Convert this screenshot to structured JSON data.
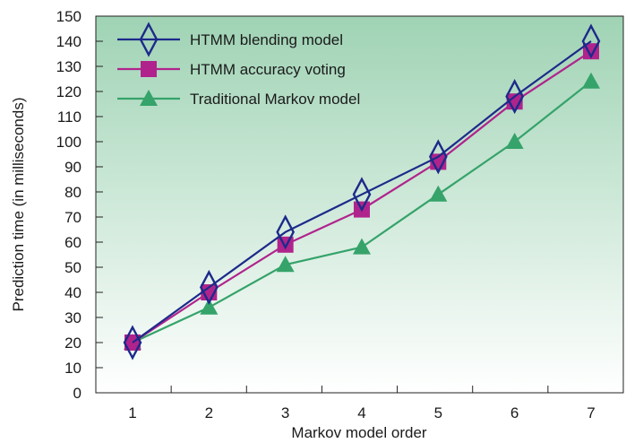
{
  "chart_data": {
    "type": "line",
    "xlabel": "Markov model order",
    "ylabel": "Prediction time (in milliseconds)",
    "x": [
      1,
      2,
      3,
      4,
      5,
      6,
      7
    ],
    "ylim": [
      0,
      150
    ],
    "yticks": [
      0,
      10,
      20,
      30,
      40,
      50,
      60,
      70,
      80,
      90,
      100,
      110,
      120,
      130,
      140,
      150
    ],
    "grid": false,
    "legend": "top-left",
    "background": {
      "top": "#9fd3b4",
      "bottom": "#ffffff"
    },
    "series": [
      {
        "name": "HTMM blending model",
        "marker": "diamond",
        "color": "#1c2a8a",
        "values": [
          20,
          42,
          64,
          79,
          94,
          118,
          140
        ]
      },
      {
        "name": "HTMM accuracy voting",
        "marker": "square",
        "color": "#b0238c",
        "values": [
          20,
          40,
          59,
          73,
          92,
          116,
          136
        ]
      },
      {
        "name": "Traditional Markov model",
        "marker": "triangle",
        "color": "#35a36a",
        "values": [
          20,
          34,
          51,
          58,
          79,
          100,
          124
        ]
      }
    ]
  }
}
